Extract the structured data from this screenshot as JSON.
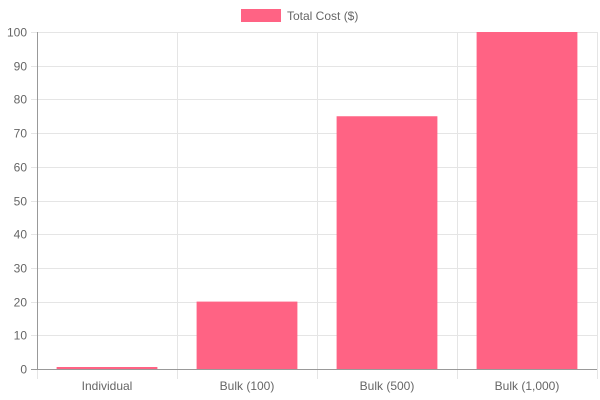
{
  "chart_data": {
    "type": "bar",
    "categories": [
      "Individual",
      "Bulk (100)",
      "Bulk (500)",
      "Bulk (1,000)"
    ],
    "series": [
      {
        "name": "Total Cost ($)",
        "values": [
          0.5,
          20,
          75,
          100
        ]
      }
    ],
    "ylim": [
      0,
      100
    ],
    "yticks": [
      0,
      10,
      20,
      30,
      40,
      50,
      60,
      70,
      80,
      90,
      100
    ],
    "grid": true,
    "legend_position": "top",
    "colors": {
      "bar": "#ff6384",
      "grid": "#e5e5e5",
      "axis": "#999999",
      "text": "#666666"
    }
  }
}
